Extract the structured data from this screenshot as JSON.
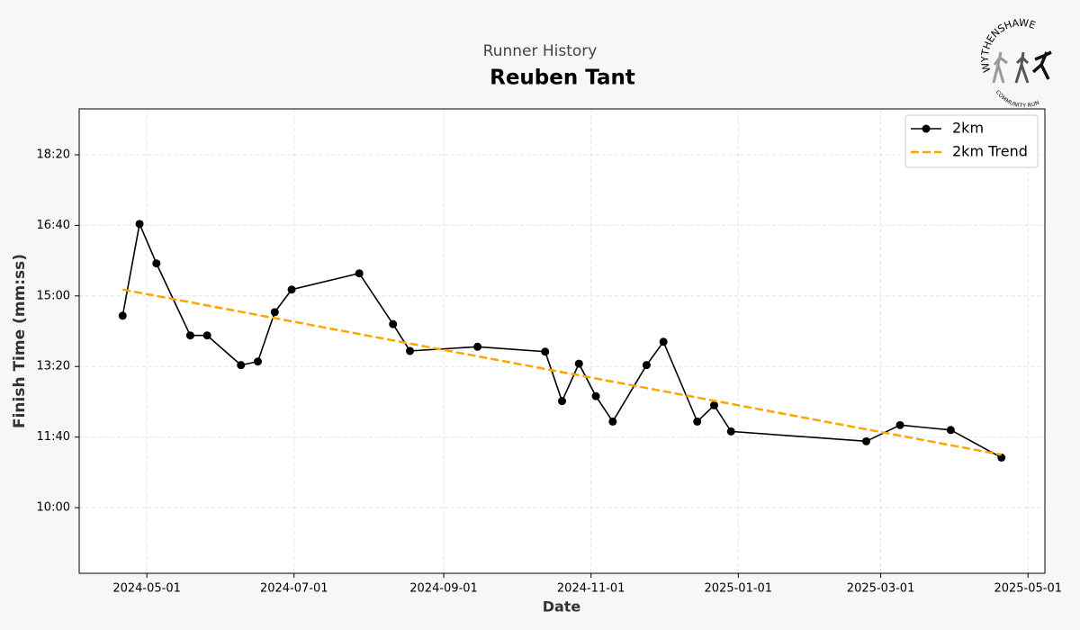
{
  "chart_data": {
    "type": "line",
    "subtitle": "Runner History",
    "title": "Reuben Tant",
    "x_label": "Date",
    "y_label": "Finish Time (mm:ss)",
    "x": [
      "2024-04-21",
      "2024-04-28",
      "2024-05-05",
      "2024-05-19",
      "2024-05-26",
      "2024-06-09",
      "2024-06-16",
      "2024-06-23",
      "2024-06-30",
      "2024-07-28",
      "2024-08-11",
      "2024-08-18",
      "2024-09-15",
      "2024-10-13",
      "2024-10-20",
      "2024-10-27",
      "2024-11-03",
      "2024-11-10",
      "2024-11-24",
      "2024-12-01",
      "2024-12-15",
      "2024-12-22",
      "2024-12-29",
      "2025-02-23",
      "2025-03-09",
      "2025-03-30",
      "2025-04-20"
    ],
    "series": [
      {
        "name": "2km",
        "color": "#000000",
        "marker": true,
        "style": "solid",
        "values": [
          872,
          1002,
          946,
          844,
          844,
          802,
          807,
          877,
          909,
          932,
          860,
          822,
          828,
          821,
          751,
          804,
          758,
          722,
          802,
          835,
          722,
          745,
          708,
          694,
          717,
          710,
          671
        ]
      },
      {
        "name": "2km Trend",
        "color": "#ffa500",
        "marker": false,
        "style": "dashed",
        "values": [
          909,
          904.5,
          900,
          891,
          886.5,
          877.5,
          873,
          868.5,
          864,
          846,
          837,
          832.5,
          814.5,
          796.5,
          792,
          787.5,
          783,
          778.5,
          769.5,
          765,
          756,
          751.5,
          747,
          711,
          702,
          688.5,
          675
        ]
      }
    ],
    "xlim": [
      "2024-04-03",
      "2025-05-08"
    ],
    "xticks": [
      "2024-05-01",
      "2024-07-01",
      "2024-09-01",
      "2024-11-01",
      "2025-01-01",
      "2025-03-01",
      "2025-05-01"
    ],
    "ylim": [
      507,
      1165
    ],
    "yticks": [
      {
        "value": 600,
        "label": "10:00"
      },
      {
        "value": 700,
        "label": "11:40"
      },
      {
        "value": 800,
        "label": "13:20"
      },
      {
        "value": 900,
        "label": "15:00"
      },
      {
        "value": 1000,
        "label": "16:40"
      },
      {
        "value": 1100,
        "label": "18:20"
      }
    ],
    "grid": true,
    "legend": "upper right"
  },
  "logo": {
    "top": "WYTHENSHAWE",
    "bottom": "COMMUNITY RUN"
  }
}
